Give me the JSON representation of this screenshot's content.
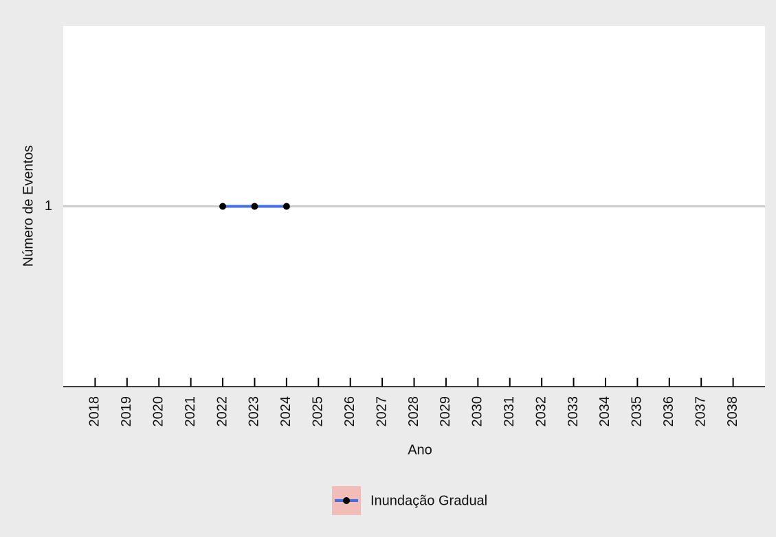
{
  "chart_data": {
    "type": "line",
    "x_label": "Ano",
    "y_label": "Número de Eventos",
    "x": [
      2022,
      2023,
      2024
    ],
    "series": [
      {
        "name": "Inundação Gradual",
        "color": "#3f6fe8",
        "values": [
          1,
          1,
          1
        ]
      }
    ],
    "xlim": [
      2017,
      2039
    ],
    "xticks": [
      2018,
      2019,
      2020,
      2021,
      2022,
      2023,
      2024,
      2025,
      2026,
      2027,
      2028,
      2029,
      2030,
      2031,
      2032,
      2033,
      2034,
      2035,
      2036,
      2037,
      2038
    ],
    "ylim": [
      0.5,
      1.5
    ],
    "yticks": [
      1
    ],
    "grid": true,
    "legend": "bottom"
  }
}
